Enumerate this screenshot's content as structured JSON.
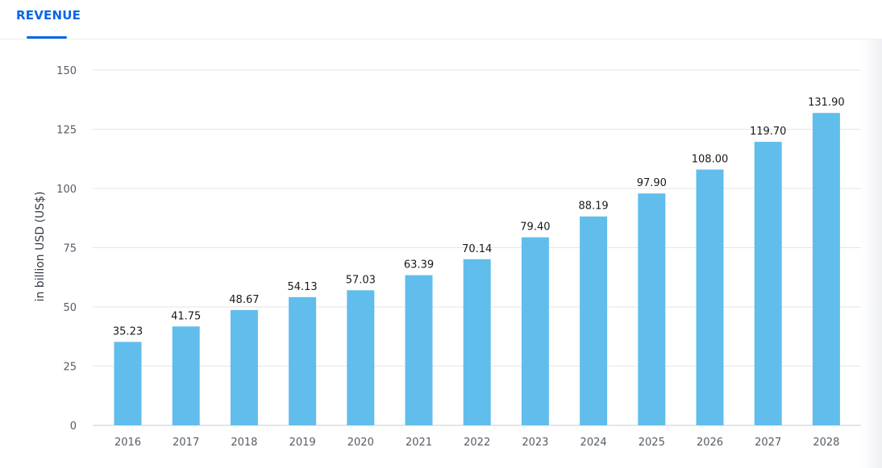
{
  "tabs": [
    {
      "label": "REVENUE",
      "active": true
    }
  ],
  "chart_data": {
    "type": "bar",
    "categories": [
      "2016",
      "2017",
      "2018",
      "2019",
      "2020",
      "2021",
      "2022",
      "2023",
      "2024",
      "2025",
      "2026",
      "2027",
      "2028"
    ],
    "series": [
      {
        "values": [
          35.23,
          41.75,
          48.67,
          54.13,
          57.03,
          63.39,
          70.14,
          79.4,
          88.19,
          97.9,
          108.0,
          119.7,
          131.9
        ],
        "labels": [
          "35.23",
          "41.75",
          "48.67",
          "54.13",
          "57.03",
          "63.39",
          "70.14",
          "79.40",
          "88.19",
          "97.90",
          "108.00",
          "119.70",
          "131.90"
        ],
        "color": "#61bdec"
      }
    ],
    "title": "",
    "xlabel": "",
    "ylabel": "in billion USD (US$)",
    "ylim": [
      0,
      150
    ],
    "yticks": [
      0,
      25,
      50,
      75,
      100,
      125,
      150
    ],
    "grid": true,
    "colors": {
      "bar": "#61bdec",
      "grid": "#e4e6ea",
      "axis": "#c8ccd2",
      "accent": "#0666e6"
    }
  }
}
